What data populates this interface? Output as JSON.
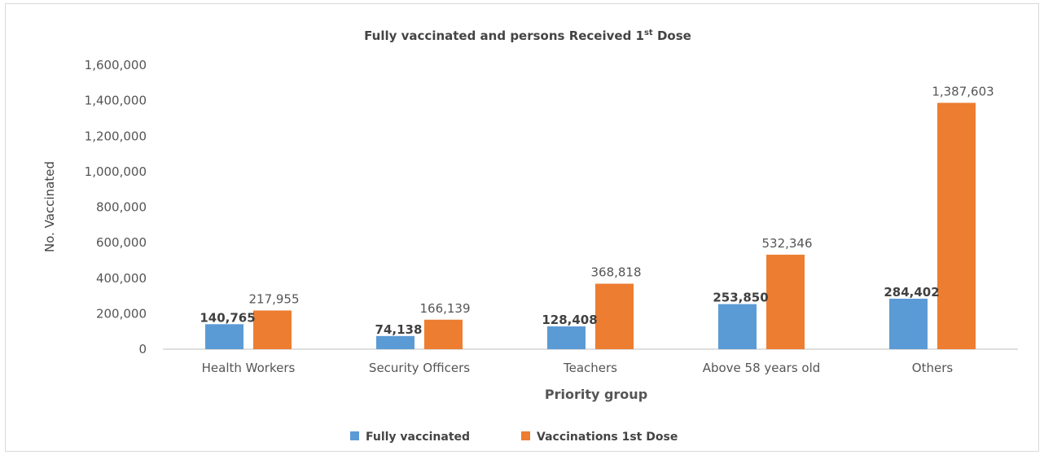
{
  "chart_data": {
    "type": "bar",
    "title_main": "Fully vaccinated and persons Received 1",
    "title_sup": "st",
    "title_end": " Dose",
    "xlabel": "Priority group",
    "ylabel": "No. Vaccinated",
    "categories": [
      "Health Workers",
      "Security Officers",
      "Teachers",
      "Above 58 years old",
      "Others"
    ],
    "series": [
      {
        "name": "Fully vaccinated",
        "color": "#5b9bd5",
        "values": [
          140765,
          74138,
          128408,
          253850,
          284402
        ],
        "labels": [
          "140,765",
          "74,138",
          "128,408",
          "253,850",
          "284,402"
        ]
      },
      {
        "name": "Vaccinations 1st Dose",
        "color": "#ed7d31",
        "values": [
          217955,
          166139,
          368818,
          532346,
          1387603
        ],
        "labels": [
          "217,955",
          "166,139",
          "368,818",
          "532,346",
          "1,387,603"
        ]
      }
    ],
    "ylim": [
      0,
      1600000
    ],
    "yticks": [
      0,
      200000,
      400000,
      600000,
      800000,
      1000000,
      1200000,
      1400000,
      1600000
    ],
    "ytick_labels": [
      "0",
      "200,000",
      "400,000",
      "600,000",
      "800,000",
      "1,000,000",
      "1,200,000",
      "1,400,000",
      "1,600,000"
    ],
    "grid": false,
    "legend_position": "bottom"
  }
}
